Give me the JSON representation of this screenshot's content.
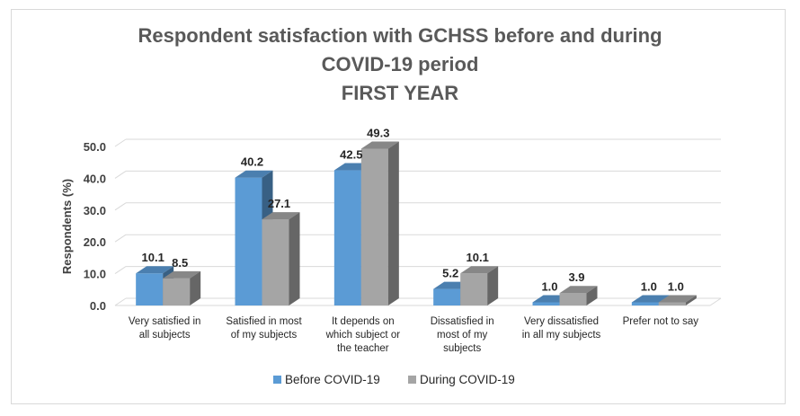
{
  "chart_data": {
    "type": "bar",
    "title_lines": [
      "Respondent satisfaction with GCHSS before and during",
      "COVID-19 period",
      "FIRST YEAR"
    ],
    "ylabel": "Respondents (%)",
    "xlabel": "",
    "ylim": [
      0,
      50
    ],
    "yticks": [
      "0.0",
      "10.0",
      "20.0",
      "30.0",
      "40.0",
      "50.0"
    ],
    "ytick_values": [
      0,
      10,
      20,
      30,
      40,
      50
    ],
    "categories": [
      [
        "Very satisfied in",
        "all subjects"
      ],
      [
        "Satisfied in most",
        "of my subjects"
      ],
      [
        "It depends on",
        "which subject or",
        "the teacher"
      ],
      [
        "Dissatisfied in",
        "most of my",
        "subjects"
      ],
      [
        "Very dissatisfied",
        "in all my subjects"
      ],
      [
        "Prefer not to say"
      ]
    ],
    "series": [
      {
        "name": "Before COVID-19",
        "values": [
          10.1,
          40.2,
          42.5,
          5.2,
          1.0,
          1.0
        ],
        "labels": [
          "10.1",
          "40.2",
          "42.5",
          "5.2",
          "1.0",
          "1.0"
        ],
        "color": "#5b9bd5"
      },
      {
        "name": "During COVID-19",
        "values": [
          8.5,
          27.1,
          49.3,
          10.1,
          3.9,
          1.0
        ],
        "labels": [
          "8.5",
          "27.1",
          "49.3",
          "10.1",
          "3.9",
          "1.0"
        ],
        "color": "#a5a5a5"
      }
    ],
    "grid": true,
    "legend_position": "bottom",
    "style": "3d-clustered-column"
  }
}
